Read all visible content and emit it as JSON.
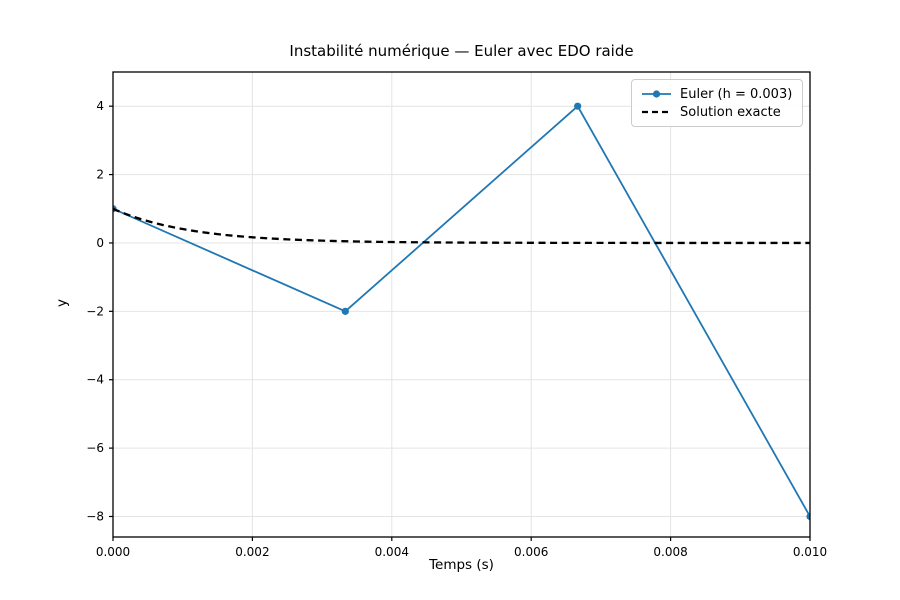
{
  "chart_data": {
    "type": "line",
    "title": "Instabilité numérique — Euler avec EDO raide",
    "xlabel": "Temps (s)",
    "ylabel": "y",
    "xlim": [
      0,
      0.01
    ],
    "ylim": [
      -8.6,
      5.0
    ],
    "grid": true,
    "grid_color": "#e4e4e4",
    "spine_color": "#000000",
    "legend_position": "upper right",
    "x_ticks": [
      0,
      0.002,
      0.004,
      0.006,
      0.008,
      0.01
    ],
    "x_tick_labels": [
      "0.000",
      "0.002",
      "0.004",
      "0.006",
      "0.008",
      "0.010"
    ],
    "y_ticks": [
      4,
      2,
      0,
      -2,
      -4,
      -6,
      -8
    ],
    "y_tick_labels": [
      "4",
      "2",
      "0",
      "−2",
      "−4",
      "−6",
      "−8"
    ],
    "series": [
      {
        "name": "euler",
        "label": "Euler (h = 0.003)",
        "color": "#1f77b4",
        "style": "solid",
        "marker": "circle",
        "points": [
          [
            0,
            1
          ],
          [
            0.0033333,
            -2
          ],
          [
            0.0066667,
            4
          ],
          [
            0.01,
            -8
          ]
        ]
      },
      {
        "name": "exact",
        "label": "Solution exacte",
        "color": "#000000",
        "style": "dashed",
        "marker": "none",
        "function": "y = exp(-900·t)",
        "y0": 1,
        "rate": -900
      }
    ]
  }
}
